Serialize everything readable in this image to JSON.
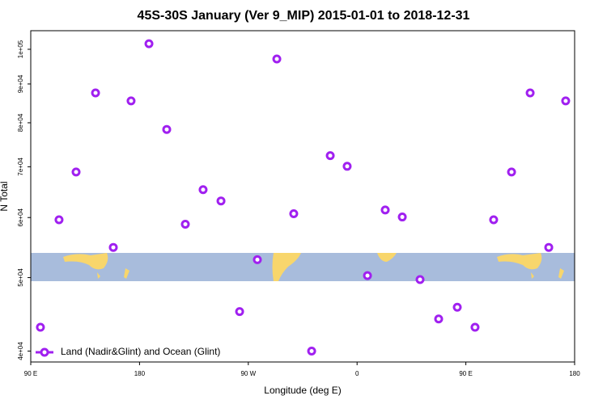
{
  "chart_data": {
    "type": "scatter",
    "title": "45S-30S January (Ver 9_MIP)   2015-01-01 to 2018-12-31",
    "x_label": "Longitude (deg E)",
    "y_label": "N Total",
    "log_y": true,
    "legend": "lower left",
    "xlim": [
      90,
      540
    ],
    "ylim": [
      38700,
      105800
    ],
    "xticks": [
      {
        "value": 90,
        "label": "90 E"
      },
      {
        "value": 180,
        "label": "180"
      },
      {
        "value": 270,
        "label": "90 W"
      },
      {
        "value": 360,
        "label": "0"
      },
      {
        "value": 450,
        "label": "90 E"
      },
      {
        "value": 540,
        "label": "180"
      }
    ],
    "yticks": [
      {
        "value": 40000,
        "label": "4e+04"
      },
      {
        "value": 50000,
        "label": "5e+04"
      },
      {
        "value": 60000,
        "label": "6e+04"
      },
      {
        "value": 70000,
        "label": "7e+04"
      },
      {
        "value": 80000,
        "label": "8e+04"
      },
      {
        "value": 90000,
        "label": "9e+04"
      },
      {
        "value": 100000,
        "label": "1e+05"
      }
    ],
    "series": [
      {
        "name": "Land (Nadir&Glint) and Ocean (Glint)",
        "color": "#a020f0",
        "x": [
          98,
          113.4,
          127.5,
          143.6,
          158.3,
          173,
          187.8,
          202.5,
          217.9,
          232.6,
          247.4,
          262.8,
          277.5,
          293.6,
          307.6,
          322.4,
          337.8,
          351.8,
          368.6,
          383.3,
          397.4,
          412.1,
          427.5,
          442.9,
          457.6,
          473,
          487.8,
          503.2,
          518.6,
          532.6
        ],
        "values": [
          43000,
          59600,
          68900,
          87600,
          54800,
          85500,
          101700,
          78400,
          58800,
          65300,
          63100,
          45100,
          52800,
          97100,
          60700,
          40000,
          72400,
          70100,
          50300,
          61400,
          60100,
          49700,
          44100,
          45700,
          43000,
          59600,
          68900,
          87600,
          54800,
          85500
        ]
      }
    ]
  }
}
